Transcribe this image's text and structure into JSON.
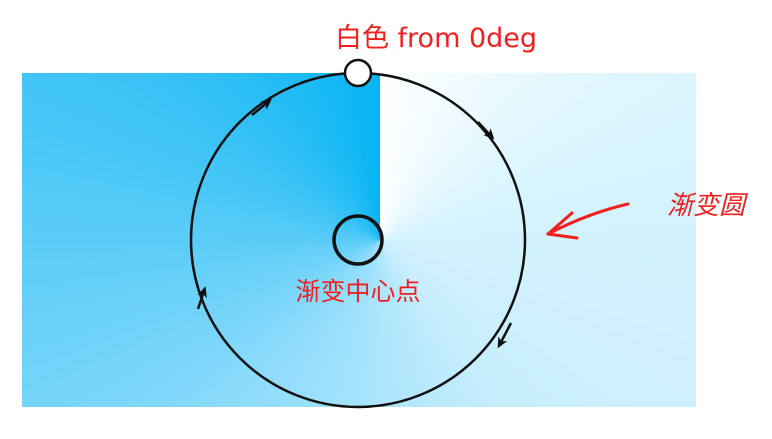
{
  "diagram": {
    "start_label": "白色 from 0deg",
    "center_label": "渐变中心点",
    "circle_label": "渐变圆"
  },
  "colors": {
    "start": "#ffffff",
    "end": "#06b4f4",
    "stroke": "#111111",
    "label": "#f02020"
  }
}
